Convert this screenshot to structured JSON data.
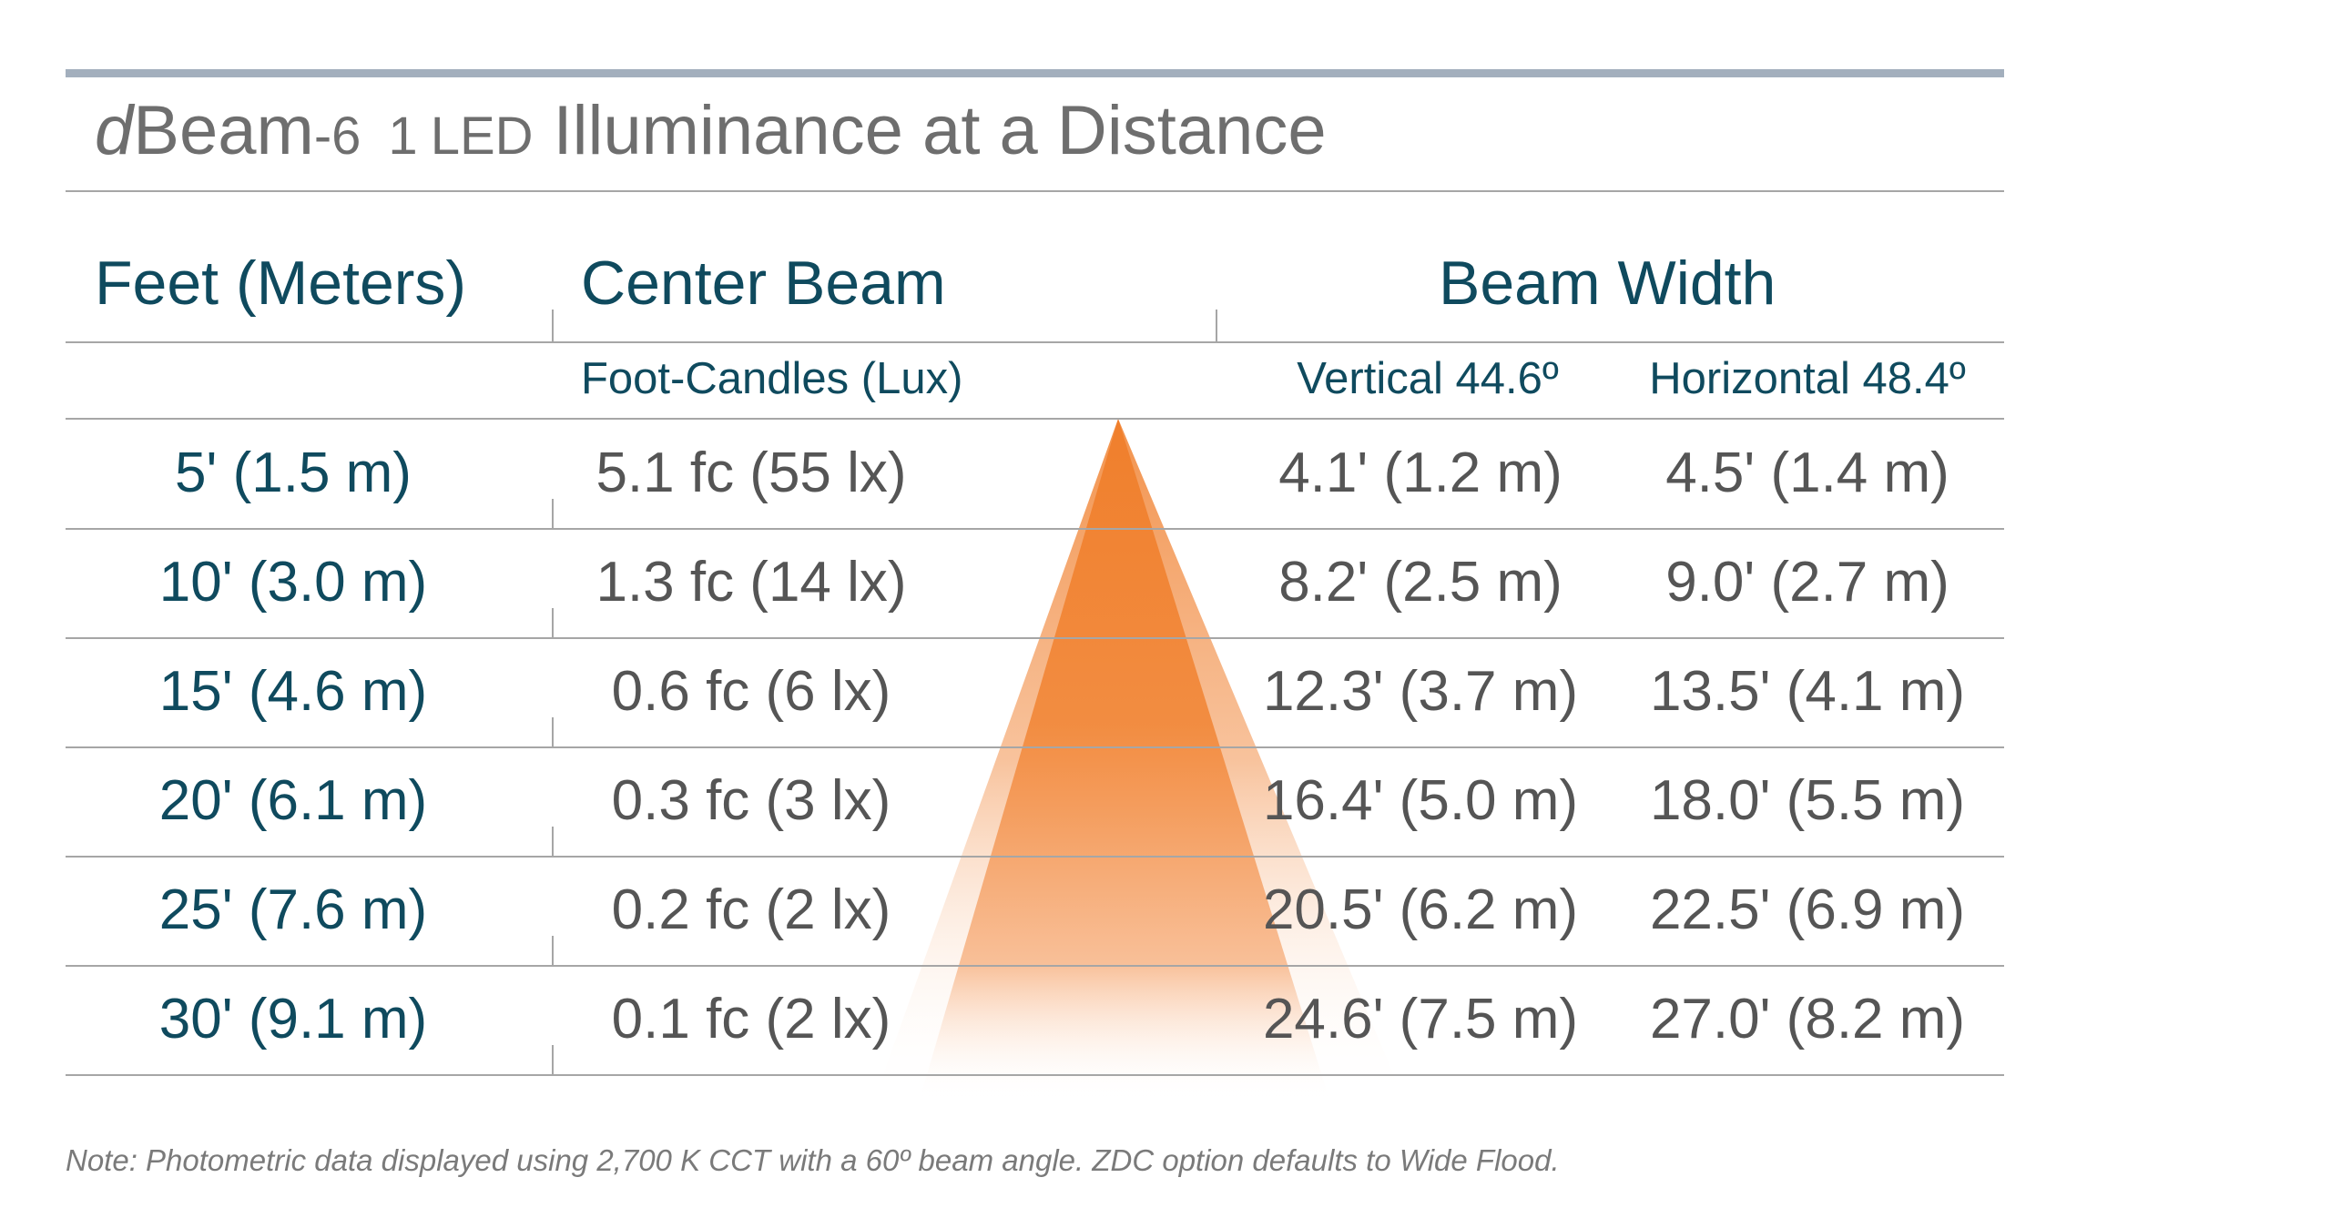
{
  "title": {
    "d": "d",
    "beam": "Beam",
    "dash": "-",
    "six": "6",
    "one": "1",
    "led": "LED",
    "main": "Illuminance at a Distance"
  },
  "headers": {
    "distance": "Feet (Meters)",
    "center_beam": "Center Beam",
    "beam_width": "Beam Width",
    "foot_candles": "Foot-Candles (Lux)",
    "vertical": "Vertical 44.6º",
    "horizontal": "Horizontal 48.4º"
  },
  "rows": [
    {
      "distance": "5' (1.5 m)",
      "center": "5.1 fc (55 lx)",
      "vertical": "4.1' (1.2 m)",
      "horizontal": "4.5' (1.4 m)"
    },
    {
      "distance": "10' (3.0 m)",
      "center": "1.3 fc (14 lx)",
      "vertical": "8.2' (2.5 m)",
      "horizontal": "9.0' (2.7 m)"
    },
    {
      "distance": "15' (4.6 m)",
      "center": "0.6 fc (6 lx)",
      "vertical": "12.3' (3.7 m)",
      "horizontal": "13.5' (4.1 m)"
    },
    {
      "distance": "20' (6.1 m)",
      "center": "0.3 fc (3 lx)",
      "vertical": "16.4' (5.0 m)",
      "horizontal": "18.0' (5.5 m)"
    },
    {
      "distance": "25' (7.6 m)",
      "center": "0.2 fc (2 lx)",
      "vertical": "20.5' (6.2 m)",
      "horizontal": "22.5' (6.9 m)"
    },
    {
      "distance": "30' (9.1 m)",
      "center": "0.1 fc (2 lx)",
      "vertical": "24.6' (7.5 m)",
      "horizontal": "27.0' (8.2 m)"
    }
  ],
  "note": "Note: Photometric data displayed using 2,700 K CCT with a 60º beam angle. ZDC option defaults to Wide Flood.",
  "colors": {
    "heading": "#0f4a5e",
    "value": "#555555",
    "rule": "#a6a6a6",
    "top_rule": "#a3afbd",
    "beam_orange": "#f07f2c"
  }
}
